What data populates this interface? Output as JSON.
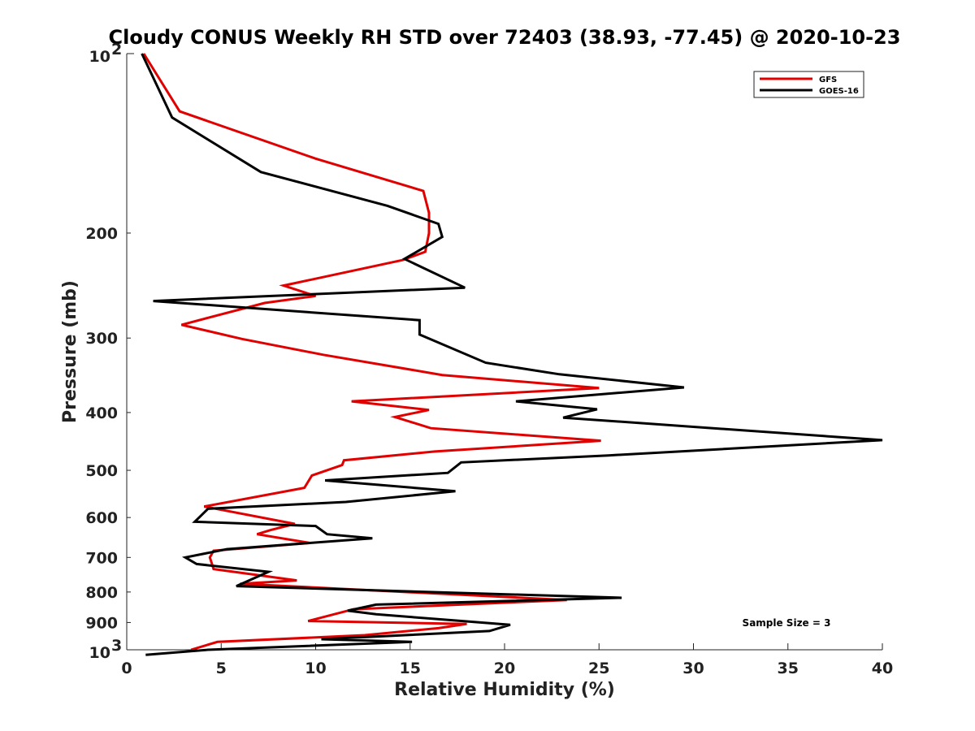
{
  "chart_data": {
    "type": "line",
    "title": "Cloudy CONUS Weekly RH STD over 72403 (38.93, -77.45) @ 2020-10-23",
    "xlabel": "Relative Humidity (%)",
    "ylabel": "Pressure (mb)",
    "xlim": [
      0,
      40
    ],
    "ylim": [
      100,
      1000
    ],
    "y_scale": "log",
    "y_reversed": true,
    "xticks": [
      0,
      5,
      10,
      15,
      20,
      25,
      30,
      35,
      40
    ],
    "xtick_labels": [
      "0",
      "5",
      "10",
      "15",
      "20",
      "25",
      "30",
      "35",
      "40"
    ],
    "y_minor_ticks": [
      200,
      300,
      400,
      500,
      600,
      700,
      800,
      900
    ],
    "y_minor_labels": [
      "200",
      "300",
      "400",
      "500",
      "600",
      "700",
      "800",
      "900"
    ],
    "y_major_ticks": [
      {
        "value": 100,
        "base": "10",
        "exp": "2"
      },
      {
        "value": 1000,
        "base": "10",
        "exp": "3"
      }
    ],
    "grid": false,
    "legend_position": "top-right",
    "annotation": "Sample Size = 3",
    "series": [
      {
        "name": "GFS",
        "color": "#e00000",
        "points": [
          [
            0.9,
            100
          ],
          [
            2.8,
            125
          ],
          [
            10.0,
            150
          ],
          [
            15.7,
            170
          ],
          [
            16.0,
            185
          ],
          [
            16.0,
            200
          ],
          [
            15.8,
            215
          ],
          [
            14.6,
            222
          ],
          [
            8.3,
            245
          ],
          [
            10.0,
            255
          ],
          [
            7.3,
            262
          ],
          [
            2.9,
            285
          ],
          [
            6.1,
            301
          ],
          [
            10.4,
            320
          ],
          [
            16.7,
            346
          ],
          [
            25.0,
            364
          ],
          [
            11.9,
            383
          ],
          [
            16.0,
            396
          ],
          [
            14.2,
            407
          ],
          [
            16.1,
            425
          ],
          [
            25.1,
            446
          ],
          [
            16.3,
            465
          ],
          [
            11.5,
            481
          ],
          [
            11.4,
            490
          ],
          [
            9.8,
            510
          ],
          [
            9.4,
            535
          ],
          [
            4.1,
            575
          ],
          [
            8.9,
            615
          ],
          [
            7.6,
            630
          ],
          [
            6.9,
            640
          ],
          [
            9.7,
            662
          ],
          [
            4.6,
            682
          ],
          [
            4.4,
            700
          ],
          [
            4.6,
            732
          ],
          [
            9.0,
            765
          ],
          [
            6.0,
            775
          ],
          [
            23.3,
            825
          ],
          [
            12.0,
            855
          ],
          [
            9.6,
            895
          ],
          [
            18.0,
            905
          ],
          [
            16.5,
            920
          ],
          [
            12.6,
            945
          ],
          [
            4.8,
            970
          ],
          [
            3.4,
            1000
          ]
        ]
      },
      {
        "name": "GOES-16",
        "color": "#000000",
        "points": [
          [
            0.8,
            100
          ],
          [
            2.4,
            128
          ],
          [
            7.1,
            158
          ],
          [
            13.8,
            180
          ],
          [
            16.5,
            193
          ],
          [
            16.7,
            203
          ],
          [
            14.7,
            221
          ],
          [
            17.9,
            247
          ],
          [
            1.4,
            260
          ],
          [
            15.5,
            280
          ],
          [
            15.5,
            296
          ],
          [
            19.0,
            330
          ],
          [
            22.9,
            345
          ],
          [
            29.5,
            363
          ],
          [
            20.6,
            383
          ],
          [
            24.9,
            395
          ],
          [
            23.1,
            408
          ],
          [
            40.0,
            445
          ],
          [
            25.5,
            472
          ],
          [
            17.7,
            485
          ],
          [
            17.0,
            505
          ],
          [
            10.5,
            520
          ],
          [
            17.4,
            542
          ],
          [
            11.6,
            565
          ],
          [
            4.3,
            580
          ],
          [
            3.6,
            610
          ],
          [
            10.0,
            620
          ],
          [
            10.6,
            640
          ],
          [
            13.0,
            650
          ],
          [
            5.3,
            678
          ],
          [
            3.1,
            700
          ],
          [
            3.7,
            718
          ],
          [
            7.5,
            740
          ],
          [
            5.8,
            782
          ],
          [
            26.2,
            818
          ],
          [
            13.2,
            840
          ],
          [
            11.7,
            860
          ],
          [
            13.2,
            872
          ],
          [
            20.3,
            908
          ],
          [
            19.2,
            930
          ],
          [
            10.3,
            960
          ],
          [
            15.1,
            970
          ],
          [
            4.3,
            1000
          ],
          [
            1.0,
            1020
          ]
        ]
      }
    ]
  }
}
